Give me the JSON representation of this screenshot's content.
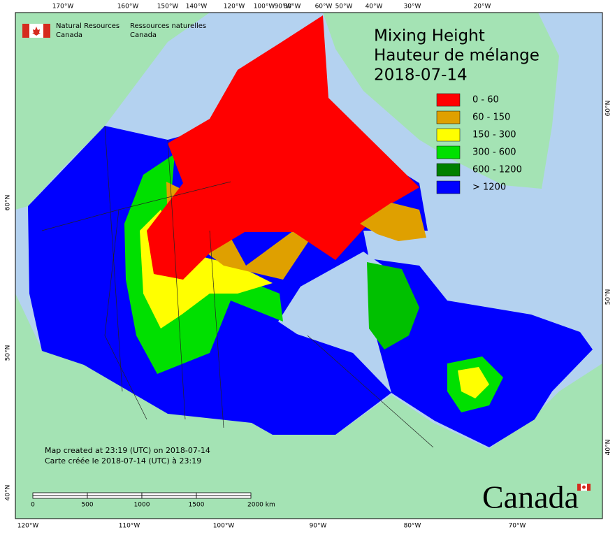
{
  "agency": {
    "en": [
      "Natural Resources",
      "Canada"
    ],
    "fr": [
      "Ressources naturelles",
      "Canada"
    ]
  },
  "title": [
    "Mixing Height",
    "Hauteur de mélange",
    "2018-07-14"
  ],
  "legend": [
    {
      "label": "0 - 60",
      "color": "#ff0000"
    },
    {
      "label": "60 - 150",
      "color": "#dfa000"
    },
    {
      "label": "150 - 300",
      "color": "#ffff00"
    },
    {
      "label": "300 - 600",
      "color": "#00e000"
    },
    {
      "label": "600 - 1200",
      "color": "#008000"
    },
    {
      "label": "> 1200",
      "color": "#0000ff"
    }
  ],
  "graticule": {
    "top": [
      "170°W",
      "160°W",
      "150°W",
      "140°W",
      "120°W",
      "100°W",
      "90°W",
      "80°W",
      "60°W",
      "50°W",
      "40°W",
      "30°W",
      "20°W"
    ],
    "bottom": [
      "120°W",
      "110°W",
      "100°W",
      "90°W",
      "80°W",
      "70°W"
    ],
    "left": [
      "60°N",
      "50°N",
      "40°N"
    ],
    "right": [
      "60°N",
      "50°N",
      "40°N"
    ]
  },
  "note": [
    "Map created at 23:19 (UTC) on 2018-07-14",
    "Carte créée le 2018-07-14 (UTC) à 23:19"
  ],
  "scale": [
    "0",
    "500",
    "1000",
    "1500",
    "2000  km"
  ],
  "wordmark": "Canada"
}
